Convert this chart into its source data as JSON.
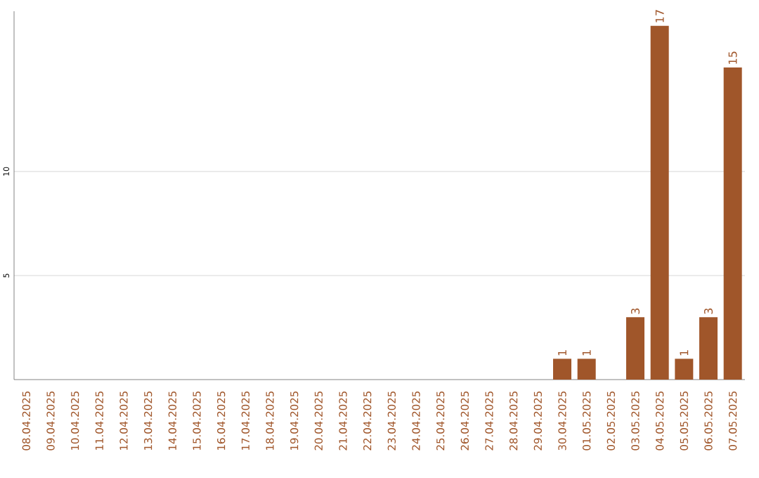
{
  "chart_data": {
    "type": "bar",
    "categories": [
      "08.04.2025",
      "09.04.2025",
      "10.04.2025",
      "11.04.2025",
      "12.04.2025",
      "13.04.2025",
      "14.04.2025",
      "15.04.2025",
      "16.04.2025",
      "17.04.2025",
      "18.04.2025",
      "19.04.2025",
      "20.04.2025",
      "21.04.2025",
      "22.04.2025",
      "23.04.2025",
      "24.04.2025",
      "25.04.2025",
      "26.04.2025",
      "27.04.2025",
      "28.04.2025",
      "29.04.2025",
      "30.04.2025",
      "01.05.2025",
      "02.05.2025",
      "03.05.2025",
      "04.05.2025",
      "05.05.2025",
      "06.05.2025",
      "07.05.2025"
    ],
    "values": [
      0,
      0,
      0,
      0,
      0,
      0,
      0,
      0,
      0,
      0,
      0,
      0,
      0,
      0,
      0,
      0,
      0,
      0,
      0,
      0,
      0,
      0,
      1,
      1,
      0,
      3,
      17,
      1,
      3,
      15
    ],
    "value_labels": [
      null,
      null,
      null,
      null,
      null,
      null,
      null,
      null,
      null,
      null,
      null,
      null,
      null,
      null,
      null,
      null,
      null,
      null,
      null,
      null,
      null,
      null,
      "1",
      "1",
      null,
      "3",
      "17",
      "1",
      "3",
      "15"
    ],
    "color": "#a0562a",
    "ylim": [
      0,
      17.7
    ],
    "yticks": [
      5,
      10
    ],
    "grid": "y"
  }
}
